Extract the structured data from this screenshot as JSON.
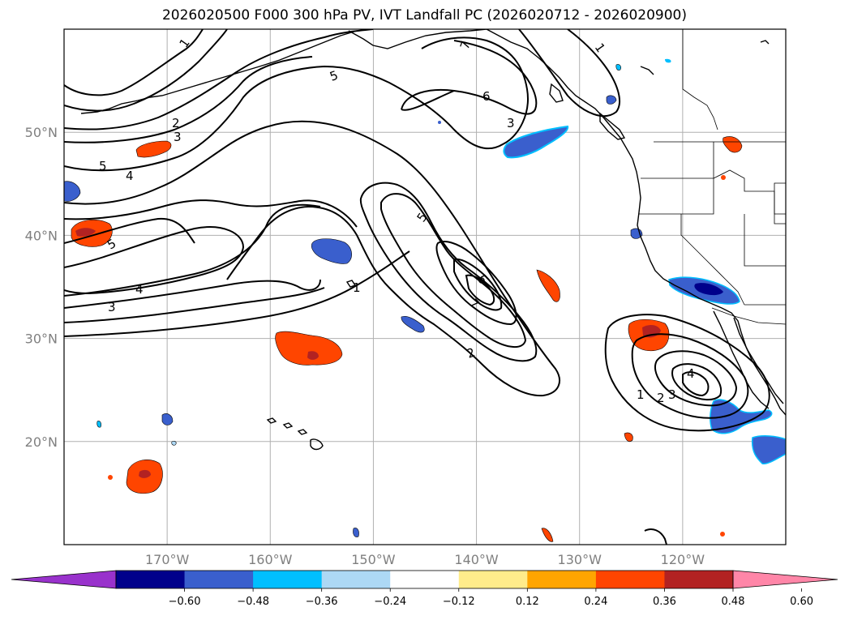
{
  "title": "2026020500 F000 300 hPa PV, IVT Landfall PC (2026020712 - 2026020900)",
  "map": {
    "lat_ticks": [
      {
        "label": "50°N",
        "lat": 50
      },
      {
        "label": "40°N",
        "lat": 40
      },
      {
        "label": "30°N",
        "lat": 30
      },
      {
        "label": "20°N",
        "lat": 20
      }
    ],
    "lon_ticks": [
      {
        "label": "170°W",
        "lon": -170
      },
      {
        "label": "160°W",
        "lon": -160
      },
      {
        "label": "150°W",
        "lon": -150
      },
      {
        "label": "140°W",
        "lon": -140
      },
      {
        "label": "130°W",
        "lon": -130
      },
      {
        "label": "120°W",
        "lon": -120
      }
    ],
    "extent": {
      "lon_min": -180,
      "lon_max": -110,
      "lat_min": 10,
      "lat_max": 60
    },
    "gridlines": true,
    "contour_field": "300 hPa PV",
    "contour_labels": [
      "1",
      "1",
      "1",
      "1",
      "2",
      "2",
      "2",
      "3",
      "3",
      "3",
      "3",
      "4",
      "4",
      "4",
      "5",
      "5",
      "5",
      "5",
      "6",
      "6",
      "7",
      "7"
    ],
    "shading_field": "IVT Landfall PC"
  },
  "colorbar": {
    "ticks": [
      "−0.60",
      "−0.48",
      "−0.36",
      "−0.24",
      "−0.12",
      "0.12",
      "0.24",
      "0.36",
      "0.48",
      "0.60"
    ],
    "colors": [
      "#9932cc",
      "#00008b",
      "#3a5fcd",
      "#00bfff",
      "#add8f5",
      "#ffffff",
      "#ffec8b",
      "#ffa500",
      "#ff4500",
      "#b22222",
      "#ff86a8"
    ],
    "extend": "both"
  }
}
